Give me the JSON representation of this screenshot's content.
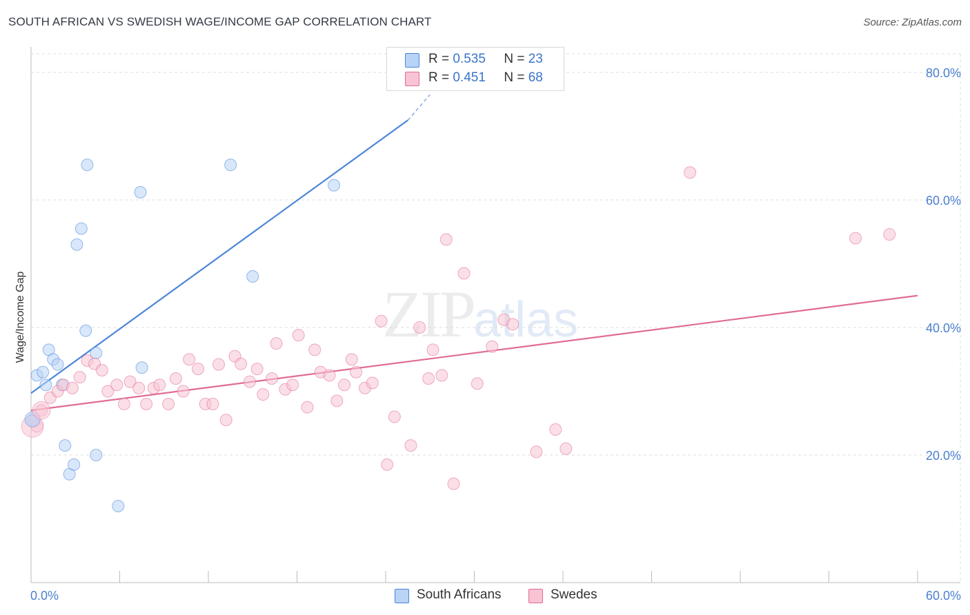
{
  "header": {
    "title": "SOUTH AFRICAN VS SWEDISH WAGE/INCOME GAP CORRELATION CHART",
    "source": "Source: ZipAtlas.com"
  },
  "watermark": {
    "zip": "ZIP",
    "atlas": "atlas"
  },
  "legend": {
    "rows": [
      {
        "r_label": "R =",
        "r_value": "0.535",
        "n_label": "N =",
        "n_value": "23",
        "color": "#b8d3f5"
      },
      {
        "r_label": "R =",
        "r_value": "0.451",
        "n_label": "N =",
        "n_value": "68",
        "color": "#f8c4d4"
      }
    ]
  },
  "bottom_legend": {
    "south_africans": "South Africans",
    "swedes": "Swedes"
  },
  "chart_data": {
    "type": "scatter",
    "title": "SOUTH AFRICAN VS SWEDISH WAGE/INCOME GAP CORRELATION CHART",
    "xlabel": "",
    "ylabel": "Wage/Income Gap",
    "xlim": [
      0,
      60
    ],
    "ylim": [
      0,
      84
    ],
    "x_tick_labels": [
      "0.0%",
      "60.0%"
    ],
    "y_ticks": [
      20,
      40,
      60,
      80
    ],
    "y_tick_labels": [
      "20.0%",
      "40.0%",
      "60.0%",
      "80.0%"
    ],
    "grid": true,
    "legend_position": "top-center",
    "series": [
      {
        "name": "South Africans",
        "color": "#4a86d8",
        "fill": "#b8d3f5",
        "points": [
          [
            0.1,
            25.5
          ],
          [
            0.4,
            32.5
          ],
          [
            0.8,
            33.0
          ],
          [
            1.0,
            31.0
          ],
          [
            1.2,
            36.5
          ],
          [
            1.5,
            35.0
          ],
          [
            1.8,
            34.2
          ],
          [
            2.1,
            31.0
          ],
          [
            2.3,
            21.5
          ],
          [
            2.6,
            17.0
          ],
          [
            2.9,
            18.5
          ],
          [
            3.1,
            53.0
          ],
          [
            3.4,
            55.5
          ],
          [
            3.8,
            65.5
          ],
          [
            3.7,
            39.5
          ],
          [
            4.4,
            36.0
          ],
          [
            4.4,
            20.0
          ],
          [
            5.9,
            12.0
          ],
          [
            7.4,
            61.2
          ],
          [
            7.5,
            33.7
          ],
          [
            13.5,
            65.5
          ],
          [
            15.0,
            48.0
          ],
          [
            20.5,
            62.3
          ]
        ],
        "trendline": {
          "x": [
            0.0,
            25.5
          ],
          "y": [
            29.7,
            72.5
          ],
          "dashed_to": [
            27.0,
            76.5
          ]
        }
      },
      {
        "name": "Swedes",
        "color": "#e06b95",
        "fill": "#f8c4d4",
        "points": [
          [
            0.4,
            24.5
          ],
          [
            0.7,
            27.0
          ],
          [
            1.3,
            29.0
          ],
          [
            1.8,
            30.0
          ],
          [
            2.2,
            31.0
          ],
          [
            2.8,
            30.5
          ],
          [
            3.3,
            32.2
          ],
          [
            3.8,
            34.8
          ],
          [
            4.3,
            34.3
          ],
          [
            4.8,
            33.3
          ],
          [
            5.2,
            30.0
          ],
          [
            5.8,
            31.0
          ],
          [
            6.3,
            28.0
          ],
          [
            6.7,
            31.5
          ],
          [
            7.3,
            30.5
          ],
          [
            7.8,
            28.0
          ],
          [
            8.3,
            30.5
          ],
          [
            8.7,
            31.0
          ],
          [
            9.3,
            28.0
          ],
          [
            9.8,
            32.0
          ],
          [
            10.3,
            30.0
          ],
          [
            10.7,
            35.0
          ],
          [
            11.3,
            33.5
          ],
          [
            11.8,
            28.0
          ],
          [
            12.3,
            28.0
          ],
          [
            12.7,
            34.2
          ],
          [
            13.2,
            25.5
          ],
          [
            13.8,
            35.5
          ],
          [
            14.2,
            34.3
          ],
          [
            14.8,
            31.5
          ],
          [
            15.3,
            33.5
          ],
          [
            15.7,
            29.5
          ],
          [
            16.3,
            32.0
          ],
          [
            16.6,
            37.5
          ],
          [
            17.2,
            30.3
          ],
          [
            17.7,
            31.0
          ],
          [
            18.1,
            38.8
          ],
          [
            18.7,
            27.5
          ],
          [
            19.2,
            36.5
          ],
          [
            19.6,
            33.0
          ],
          [
            20.2,
            32.5
          ],
          [
            20.7,
            28.5
          ],
          [
            21.2,
            31.0
          ],
          [
            21.7,
            35.0
          ],
          [
            22.0,
            33.0
          ],
          [
            22.6,
            30.5
          ],
          [
            23.1,
            31.3
          ],
          [
            23.7,
            41.0
          ],
          [
            24.1,
            18.5
          ],
          [
            24.6,
            26.0
          ],
          [
            25.7,
            21.5
          ],
          [
            26.3,
            40.0
          ],
          [
            26.9,
            32.0
          ],
          [
            27.2,
            36.5
          ],
          [
            27.8,
            32.5
          ],
          [
            28.1,
            53.8
          ],
          [
            28.6,
            15.5
          ],
          [
            29.3,
            48.5
          ],
          [
            30.2,
            31.2
          ],
          [
            31.2,
            37.0
          ],
          [
            32.0,
            41.2
          ],
          [
            32.6,
            40.5
          ],
          [
            34.2,
            20.5
          ],
          [
            35.5,
            24.0
          ],
          [
            36.2,
            21.0
          ],
          [
            44.6,
            64.3
          ],
          [
            55.8,
            54.0
          ],
          [
            58.1,
            54.6
          ]
        ],
        "trendline": {
          "x": [
            0.0,
            60.0
          ],
          "y": [
            27.0,
            45.0
          ]
        }
      }
    ]
  }
}
